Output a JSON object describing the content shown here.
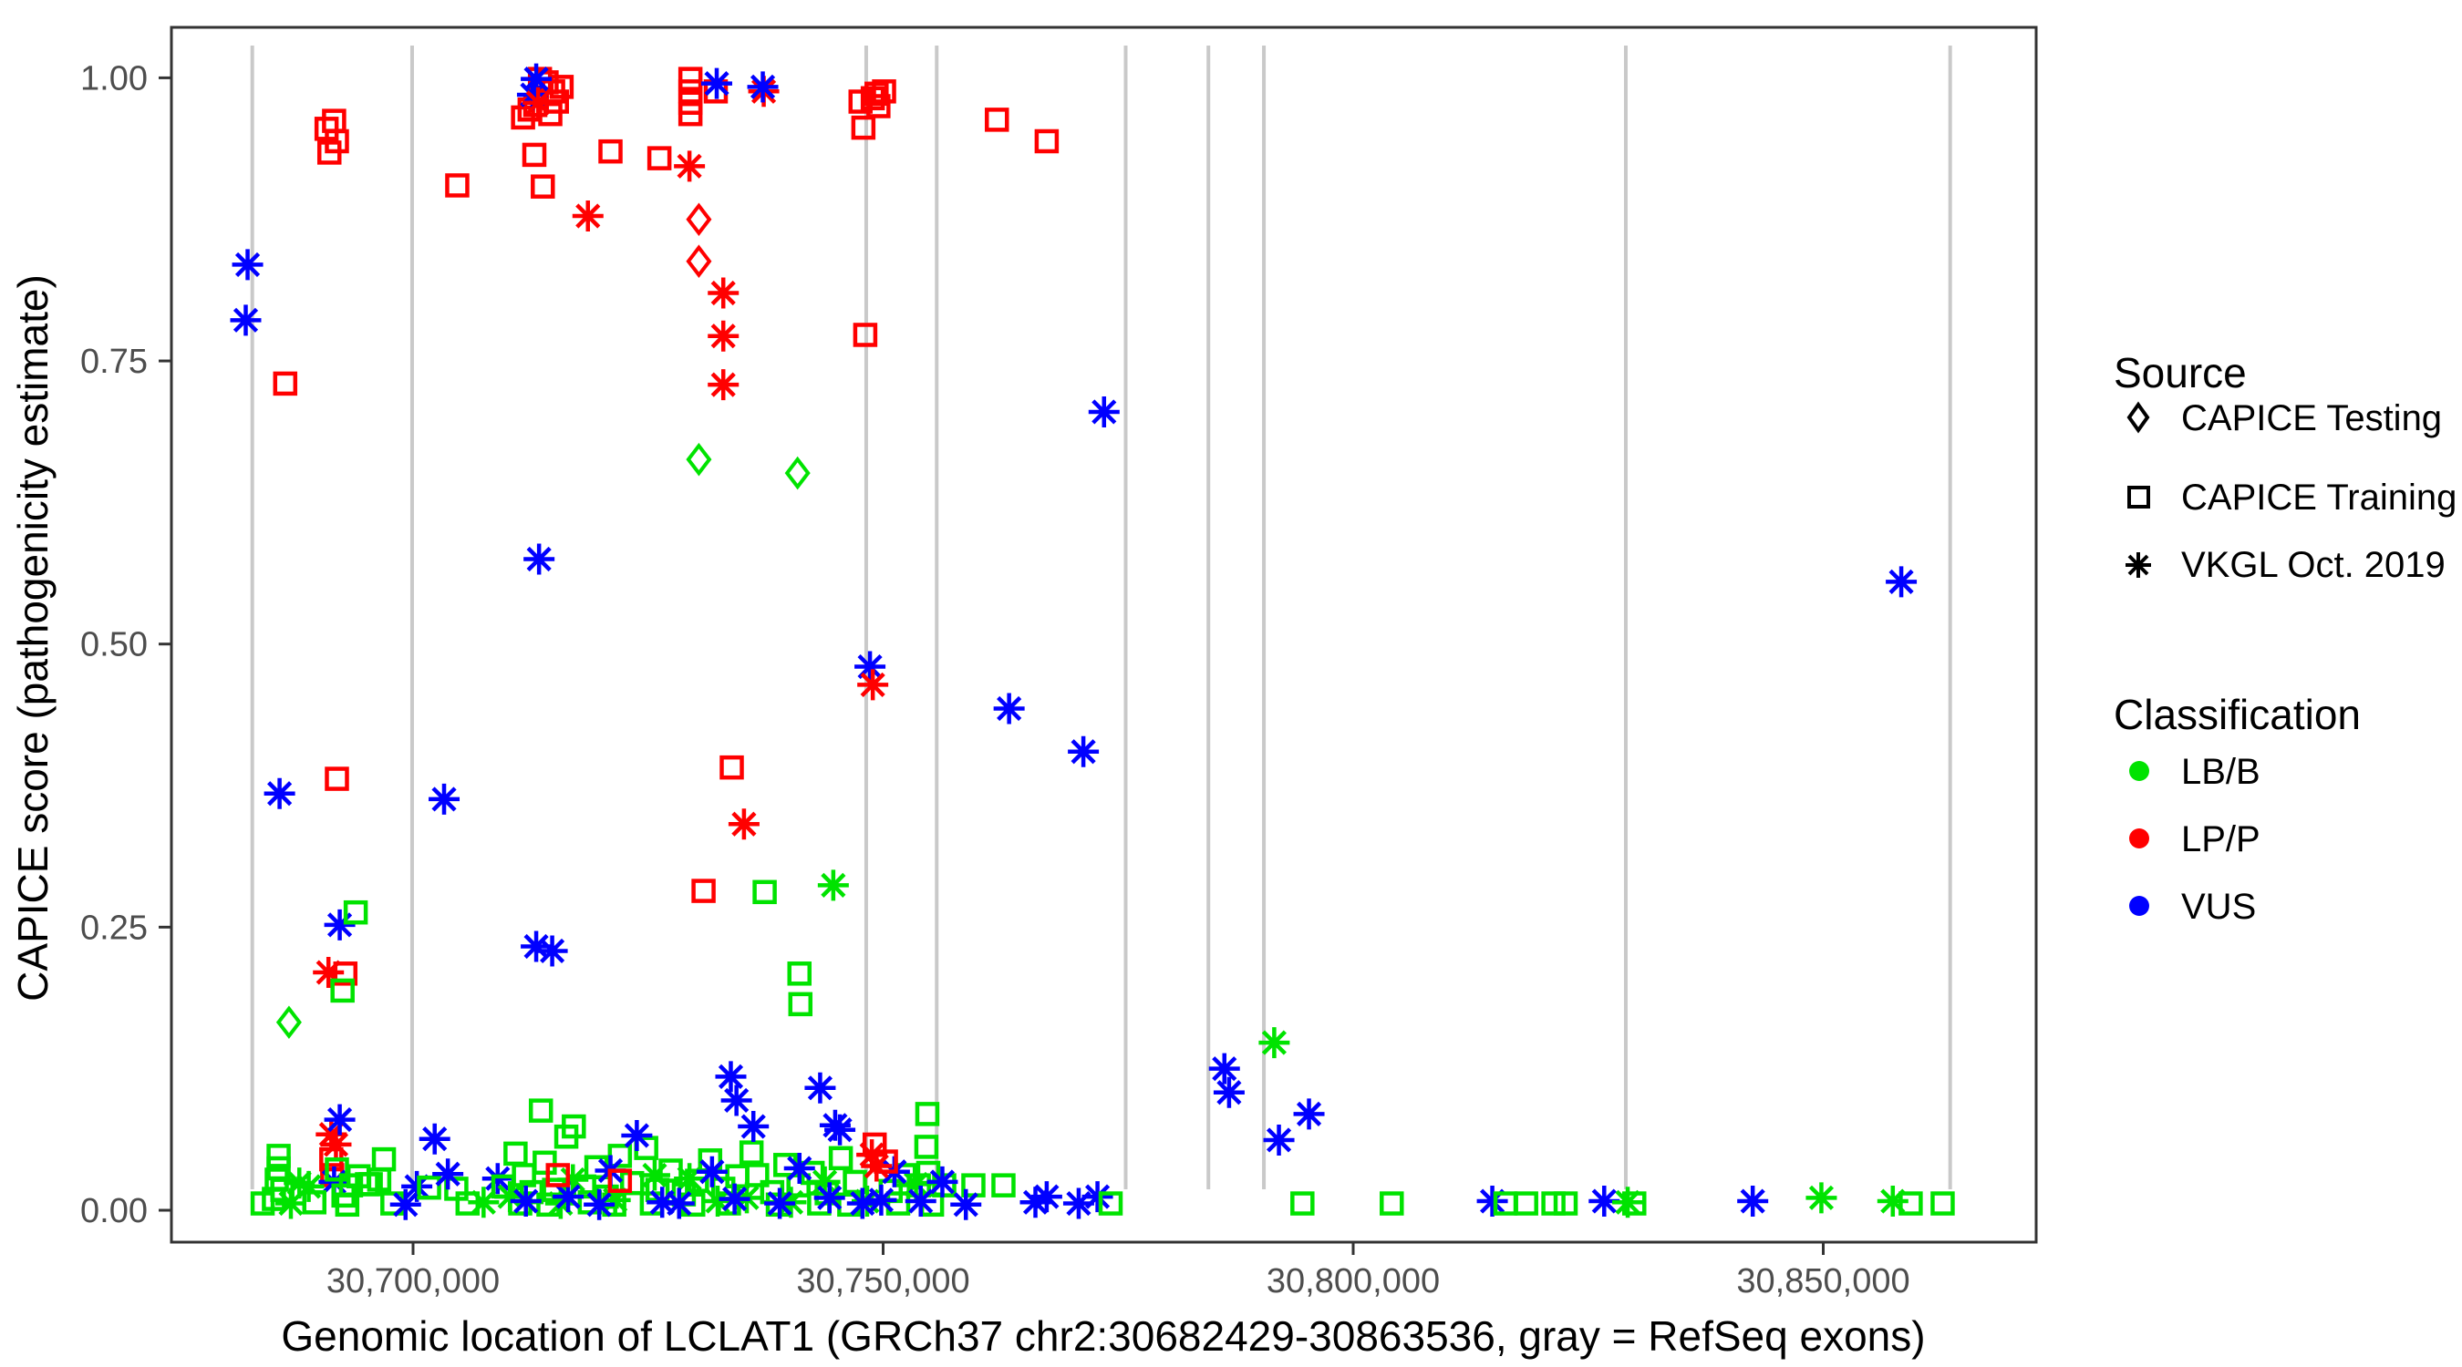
{
  "chart_data": {
    "type": "scatter",
    "title": "",
    "xlabel": "Genomic location of LCLAT1 (GRCh37 chr2:30682429-30863536, gray = RefSeq exons)",
    "ylabel": "CAPICE score (pathogenicity estimate)",
    "x_domain": [
      30674300,
      30872600
    ],
    "ylim": [
      -0.028,
      1.045
    ],
    "grid": "none",
    "legend_position": "right",
    "x_ticks": [
      {
        "value": 30700000,
        "label": "30,700,000"
      },
      {
        "value": 30750000,
        "label": "30,750,000"
      },
      {
        "value": 30800000,
        "label": "30,800,000"
      },
      {
        "value": 30850000,
        "label": "30,850,000"
      }
    ],
    "y_ticks": [
      {
        "value": 0.0,
        "label": "0.00"
      },
      {
        "value": 0.25,
        "label": "0.25"
      },
      {
        "value": 0.5,
        "label": "0.50"
      },
      {
        "value": 0.75,
        "label": "0.75"
      },
      {
        "value": 1.0,
        "label": "1.00"
      }
    ],
    "exon_guides_bp": [
      30682900,
      30699900,
      30748200,
      30755700,
      30775800,
      30784600,
      30790500,
      30829000,
      30863500
    ],
    "colors": {
      "g": "#00E300",
      "r": "#FF0000",
      "b": "#0000FF",
      "exon": "#C9C9C9",
      "axis": "#333333",
      "tick_text": "#4d4d4d"
    },
    "shape_legend": {
      "d": "CAPICE Testing",
      "s": "CAPICE Training",
      "a": "VKGL Oct. 2019"
    },
    "class_legend": {
      "g": "LB/B",
      "r": "LP/P",
      "b": "VUS"
    },
    "points": [
      [
        30690800,
        0.955,
        "s",
        "r"
      ],
      [
        30691600,
        0.962,
        "s",
        "r"
      ],
      [
        30691900,
        0.944,
        "s",
        "r"
      ],
      [
        30691100,
        0.934,
        "s",
        "r"
      ],
      [
        30682400,
        0.835,
        "a",
        "b"
      ],
      [
        30682200,
        0.786,
        "a",
        "b"
      ],
      [
        30686400,
        0.73,
        "s",
        "r"
      ],
      [
        30711700,
        0.965,
        "s",
        "r"
      ],
      [
        30712400,
        0.972,
        "s",
        "r"
      ],
      [
        30713000,
        0.976,
        "s",
        "r"
      ],
      [
        30713500,
        0.999,
        "s",
        "r"
      ],
      [
        30714200,
        0.996,
        "s",
        "r"
      ],
      [
        30714900,
        0.988,
        "s",
        "r"
      ],
      [
        30715300,
        0.979,
        "s",
        "r"
      ],
      [
        30715800,
        0.992,
        "s",
        "r"
      ],
      [
        30714600,
        0.968,
        "s",
        "r"
      ],
      [
        30712900,
        0.932,
        "s",
        "r"
      ],
      [
        30713100,
        0.999,
        "a",
        "b"
      ],
      [
        30712700,
        0.985,
        "a",
        "b"
      ],
      [
        30713300,
        0.978,
        "a",
        "r"
      ],
      [
        30704700,
        0.905,
        "s",
        "r"
      ],
      [
        30713800,
        0.904,
        "s",
        "r"
      ],
      [
        30721000,
        0.935,
        "s",
        "r"
      ],
      [
        30726200,
        0.929,
        "s",
        "r"
      ],
      [
        30729500,
        0.999,
        "s",
        "r"
      ],
      [
        30729500,
        0.988,
        "s",
        "r"
      ],
      [
        30729500,
        0.978,
        "s",
        "r"
      ],
      [
        30729500,
        0.968,
        "s",
        "r"
      ],
      [
        30732200,
        0.988,
        "s",
        "r"
      ],
      [
        30732300,
        0.995,
        "a",
        "b"
      ],
      [
        30737300,
        0.988,
        "a",
        "r"
      ],
      [
        30737200,
        0.992,
        "a",
        "b"
      ],
      [
        30729400,
        0.922,
        "a",
        "r"
      ],
      [
        30718600,
        0.878,
        "a",
        "r"
      ],
      [
        30730400,
        0.875,
        "d",
        "r"
      ],
      [
        30730400,
        0.838,
        "d",
        "r"
      ],
      [
        30733000,
        0.81,
        "a",
        "r"
      ],
      [
        30733000,
        0.772,
        "a",
        "r"
      ],
      [
        30733000,
        0.729,
        "a",
        "r"
      ],
      [
        30747600,
        0.979,
        "s",
        "r"
      ],
      [
        30748900,
        0.982,
        "s",
        "r"
      ],
      [
        30749300,
        0.986,
        "s",
        "r"
      ],
      [
        30750100,
        0.988,
        "s",
        "r"
      ],
      [
        30749500,
        0.975,
        "s",
        "r"
      ],
      [
        30747900,
        0.956,
        "s",
        "r"
      ],
      [
        30762100,
        0.963,
        "s",
        "r"
      ],
      [
        30767400,
        0.944,
        "s",
        "r"
      ],
      [
        30748100,
        0.773,
        "s",
        "r"
      ],
      [
        30748600,
        0.48,
        "a",
        "b"
      ],
      [
        30748900,
        0.464,
        "a",
        "r"
      ],
      [
        30733900,
        0.391,
        "s",
        "r"
      ],
      [
        30735200,
        0.341,
        "a",
        "r"
      ],
      [
        30730900,
        0.282,
        "s",
        "r"
      ],
      [
        30737400,
        0.281,
        "s",
        "g"
      ],
      [
        30713100,
        0.233,
        "a",
        "b"
      ],
      [
        30714800,
        0.229,
        "a",
        "b"
      ],
      [
        30713400,
        0.575,
        "a",
        "b"
      ],
      [
        30730400,
        0.663,
        "d",
        "g"
      ],
      [
        30740900,
        0.651,
        "d",
        "g"
      ],
      [
        30741100,
        0.209,
        "s",
        "g"
      ],
      [
        30741200,
        0.182,
        "s",
        "g"
      ],
      [
        30744700,
        0.287,
        "a",
        "g"
      ],
      [
        30685800,
        0.368,
        "a",
        "b"
      ],
      [
        30691900,
        0.381,
        "s",
        "r"
      ],
      [
        30703300,
        0.363,
        "a",
        "b"
      ],
      [
        30692200,
        0.252,
        "a",
        "b"
      ],
      [
        30693900,
        0.263,
        "s",
        "g"
      ],
      [
        30691000,
        0.21,
        "a",
        "r"
      ],
      [
        30692800,
        0.209,
        "s",
        "r"
      ],
      [
        30692500,
        0.194,
        "s",
        "g"
      ],
      [
        30686800,
        0.166,
        "d",
        "g"
      ],
      [
        30773500,
        0.705,
        "a",
        "b"
      ],
      [
        30763400,
        0.443,
        "a",
        "b"
      ],
      [
        30771300,
        0.405,
        "a",
        "b"
      ],
      [
        30858300,
        0.555,
        "a",
        "b"
      ],
      [
        30786300,
        0.125,
        "a",
        "b"
      ],
      [
        30786800,
        0.104,
        "a",
        "b"
      ],
      [
        30791600,
        0.148,
        "a",
        "g"
      ],
      [
        30795300,
        0.085,
        "a",
        "b"
      ],
      [
        30792100,
        0.062,
        "a",
        "b"
      ],
      [
        30691300,
        0.067,
        "a",
        "r"
      ],
      [
        30691800,
        0.058,
        "a",
        "r"
      ],
      [
        30691300,
        0.045,
        "s",
        "r"
      ],
      [
        30691400,
        0.031,
        "s",
        "r"
      ],
      [
        30685700,
        0.048,
        "s",
        "g"
      ],
      [
        30685700,
        0.037,
        "s",
        "g"
      ],
      [
        30685500,
        0.027,
        "s",
        "g"
      ],
      [
        30686100,
        0.018,
        "s",
        "g"
      ],
      [
        30685200,
        0.01,
        "s",
        "g"
      ],
      [
        30687900,
        0.024,
        "a",
        "g"
      ],
      [
        30688900,
        0.021,
        "a",
        "g"
      ],
      [
        30691600,
        0.025,
        "a",
        "b"
      ],
      [
        30692200,
        0.08,
        "a",
        "b"
      ],
      [
        30702300,
        0.063,
        "a",
        "b"
      ],
      [
        30691900,
        0.036,
        "s",
        "g"
      ],
      [
        30692600,
        0.013,
        "s",
        "g"
      ],
      [
        30693400,
        0.022,
        "s",
        "g"
      ],
      [
        30694200,
        0.03,
        "s",
        "g"
      ],
      [
        30695100,
        0.023,
        "s",
        "g"
      ],
      [
        30693000,
        0.005,
        "s",
        "g"
      ],
      [
        30696900,
        0.045,
        "s",
        "g"
      ],
      [
        30696400,
        0.027,
        "s",
        "g"
      ],
      [
        30695500,
        0.023,
        "s",
        "g"
      ],
      [
        30700400,
        0.021,
        "a",
        "b"
      ],
      [
        30701700,
        0.02,
        "s",
        "g"
      ],
      [
        30704600,
        0.019,
        "s",
        "g"
      ],
      [
        30703700,
        0.032,
        "a",
        "b"
      ],
      [
        30709000,
        0.028,
        "a",
        "b"
      ],
      [
        30709600,
        0.021,
        "s",
        "g"
      ],
      [
        30684000,
        0.006,
        "s",
        "g"
      ],
      [
        30687000,
        0.006,
        "a",
        "g"
      ],
      [
        30689500,
        0.007,
        "s",
        "g"
      ],
      [
        30697800,
        0.006,
        "s",
        "g"
      ],
      [
        30699200,
        0.005,
        "a",
        "b"
      ],
      [
        30705800,
        0.006,
        "s",
        "g"
      ],
      [
        30707500,
        0.007,
        "a",
        "g"
      ],
      [
        30710900,
        0.05,
        "s",
        "g"
      ],
      [
        30711800,
        0.031,
        "s",
        "g"
      ],
      [
        30712600,
        0.016,
        "s",
        "g"
      ],
      [
        30713600,
        0.088,
        "s",
        "g"
      ],
      [
        30714000,
        0.042,
        "s",
        "g"
      ],
      [
        30715000,
        0.018,
        "s",
        "g"
      ],
      [
        30716300,
        0.065,
        "s",
        "g"
      ],
      [
        30717100,
        0.074,
        "s",
        "g"
      ],
      [
        30718200,
        0.021,
        "s",
        "g"
      ],
      [
        30719500,
        0.038,
        "s",
        "g"
      ],
      [
        30720600,
        0.012,
        "s",
        "g"
      ],
      [
        30722000,
        0.048,
        "s",
        "g"
      ],
      [
        30723300,
        0.024,
        "s",
        "g"
      ],
      [
        30724800,
        0.055,
        "s",
        "g"
      ],
      [
        30726000,
        0.018,
        "s",
        "g"
      ],
      [
        30727400,
        0.035,
        "s",
        "g"
      ],
      [
        30728800,
        0.014,
        "s",
        "g"
      ],
      [
        30730200,
        0.026,
        "s",
        "g"
      ],
      [
        30731600,
        0.044,
        "s",
        "g"
      ],
      [
        30733000,
        0.019,
        "s",
        "g"
      ],
      [
        30734500,
        0.03,
        "s",
        "g"
      ],
      [
        30736000,
        0.051,
        "s",
        "g"
      ],
      [
        30736600,
        0.031,
        "s",
        "g"
      ],
      [
        30738200,
        0.016,
        "s",
        "g"
      ],
      [
        30739600,
        0.04,
        "s",
        "g"
      ],
      [
        30741000,
        0.022,
        "s",
        "g"
      ],
      [
        30742500,
        0.033,
        "s",
        "g"
      ],
      [
        30744000,
        0.015,
        "s",
        "g"
      ],
      [
        30745500,
        0.046,
        "s",
        "g"
      ],
      [
        30747000,
        0.025,
        "s",
        "g"
      ],
      [
        30750800,
        0.017,
        "s",
        "g"
      ],
      [
        30752300,
        0.031,
        "s",
        "g"
      ],
      [
        30753800,
        0.022,
        "s",
        "g"
      ],
      [
        30754700,
        0.085,
        "s",
        "g"
      ],
      [
        30754600,
        0.056,
        "s",
        "g"
      ],
      [
        30754800,
        0.033,
        "s",
        "g"
      ],
      [
        30756500,
        0.022,
        "s",
        "g"
      ],
      [
        30759600,
        0.022,
        "s",
        "g"
      ],
      [
        30762800,
        0.022,
        "s",
        "g"
      ],
      [
        30711400,
        0.006,
        "s",
        "g"
      ],
      [
        30714400,
        0.005,
        "s",
        "g"
      ],
      [
        30718800,
        0.007,
        "s",
        "g"
      ],
      [
        30721400,
        0.005,
        "s",
        "g"
      ],
      [
        30725400,
        0.006,
        "s",
        "g"
      ],
      [
        30729800,
        0.005,
        "s",
        "g"
      ],
      [
        30733600,
        0.006,
        "s",
        "g"
      ],
      [
        30738800,
        0.005,
        "s",
        "g"
      ],
      [
        30743200,
        0.006,
        "s",
        "g"
      ],
      [
        30746400,
        0.005,
        "s",
        "g"
      ],
      [
        30751600,
        0.006,
        "s",
        "g"
      ],
      [
        30755200,
        0.005,
        "s",
        "g"
      ],
      [
        30710300,
        0.012,
        "a",
        "g"
      ],
      [
        30717000,
        0.027,
        "a",
        "g"
      ],
      [
        30721500,
        0.009,
        "a",
        "g"
      ],
      [
        30729400,
        0.028,
        "a",
        "g"
      ],
      [
        30735500,
        0.011,
        "a",
        "g"
      ],
      [
        30743800,
        0.025,
        "a",
        "g"
      ],
      [
        30753500,
        0.023,
        "a",
        "g"
      ],
      [
        30748300,
        0.008,
        "a",
        "g"
      ],
      [
        30725700,
        0.031,
        "a",
        "g"
      ],
      [
        30740200,
        0.007,
        "a",
        "g"
      ],
      [
        30715700,
        0.006,
        "a",
        "g"
      ],
      [
        30732400,
        0.008,
        "a",
        "g"
      ],
      [
        30721000,
        0.035,
        "a",
        "b"
      ],
      [
        30723800,
        0.066,
        "a",
        "b"
      ],
      [
        30731800,
        0.034,
        "a",
        "b"
      ],
      [
        30741100,
        0.037,
        "a",
        "b"
      ],
      [
        30745400,
        0.071,
        "a",
        "b"
      ],
      [
        30751200,
        0.034,
        "a",
        "b"
      ],
      [
        30756300,
        0.025,
        "a",
        "b"
      ],
      [
        30712000,
        0.008,
        "a",
        "b"
      ],
      [
        30716500,
        0.012,
        "a",
        "b"
      ],
      [
        30726500,
        0.007,
        "a",
        "b"
      ],
      [
        30734200,
        0.01,
        "a",
        "b"
      ],
      [
        30739000,
        0.006,
        "a",
        "b"
      ],
      [
        30744300,
        0.011,
        "a",
        "b"
      ],
      [
        30749800,
        0.009,
        "a",
        "b"
      ],
      [
        30743300,
        0.108,
        "a",
        "b"
      ],
      [
        30744900,
        0.075,
        "a",
        "b"
      ],
      [
        30733800,
        0.118,
        "a",
        "b"
      ],
      [
        30734400,
        0.097,
        "a",
        "b"
      ],
      [
        30736200,
        0.074,
        "a",
        "b"
      ],
      [
        30767400,
        0.012,
        "a",
        "b"
      ],
      [
        30766200,
        0.007,
        "a",
        "b"
      ],
      [
        30770800,
        0.006,
        "a",
        "b"
      ],
      [
        30772800,
        0.012,
        "a",
        "b"
      ],
      [
        30719800,
        0.005,
        "a",
        "b"
      ],
      [
        30728300,
        0.006,
        "a",
        "b"
      ],
      [
        30747800,
        0.006,
        "a",
        "b"
      ],
      [
        30754000,
        0.008,
        "a",
        "b"
      ],
      [
        30758800,
        0.005,
        "a",
        "b"
      ],
      [
        30749100,
        0.058,
        "s",
        "r"
      ],
      [
        30748800,
        0.049,
        "a",
        "r"
      ],
      [
        30750300,
        0.043,
        "s",
        "r"
      ],
      [
        30749300,
        0.039,
        "a",
        "r"
      ],
      [
        30722000,
        0.026,
        "s",
        "r"
      ],
      [
        30715400,
        0.031,
        "s",
        "r"
      ],
      [
        30774200,
        0.006,
        "s",
        "g"
      ],
      [
        30794600,
        0.006,
        "s",
        "g"
      ],
      [
        30804100,
        0.006,
        "s",
        "g"
      ],
      [
        30814800,
        0.008,
        "a",
        "b"
      ],
      [
        30816200,
        0.006,
        "s",
        "g"
      ],
      [
        30818400,
        0.006,
        "s",
        "g"
      ],
      [
        30821300,
        0.006,
        "s",
        "g"
      ],
      [
        30822600,
        0.006,
        "s",
        "g"
      ],
      [
        30826700,
        0.008,
        "a",
        "b"
      ],
      [
        30829200,
        0.007,
        "a",
        "g"
      ],
      [
        30829900,
        0.006,
        "s",
        "g"
      ],
      [
        30842500,
        0.008,
        "a",
        "b"
      ],
      [
        30849800,
        0.011,
        "a",
        "g"
      ],
      [
        30857400,
        0.008,
        "a",
        "g"
      ],
      [
        30859300,
        0.006,
        "s",
        "g"
      ],
      [
        30862700,
        0.006,
        "s",
        "g"
      ]
    ]
  },
  "legend": {
    "source": {
      "title": "Source",
      "items": [
        {
          "label": "CAPICE Testing",
          "glyph": "diamond-icon"
        },
        {
          "label": "CAPICE Training",
          "glyph": "square-icon"
        },
        {
          "label": "VKGL Oct. 2019",
          "glyph": "asterisk-icon"
        }
      ]
    },
    "classification": {
      "title": "Classification",
      "items": [
        {
          "label": "LB/B",
          "color": "#00E300"
        },
        {
          "label": "LP/P",
          "color": "#FF0000"
        },
        {
          "label": "VUS",
          "color": "#0000FF"
        }
      ]
    }
  },
  "axes": {
    "x_title": "Genomic location of LCLAT1 (GRCh37 chr2:30682429-30863536, gray = RefSeq exons)",
    "y_title": "CAPICE score (pathogenicity estimate)"
  }
}
